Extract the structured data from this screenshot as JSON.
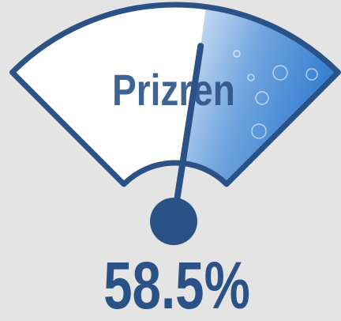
{
  "chart_data": {
    "type": "gauge",
    "title": "Prizren",
    "values": [
      58.5
    ],
    "value_labels": [
      "58.5%"
    ],
    "ylim": [
      0,
      100
    ],
    "color": "#2a5286"
  }
}
